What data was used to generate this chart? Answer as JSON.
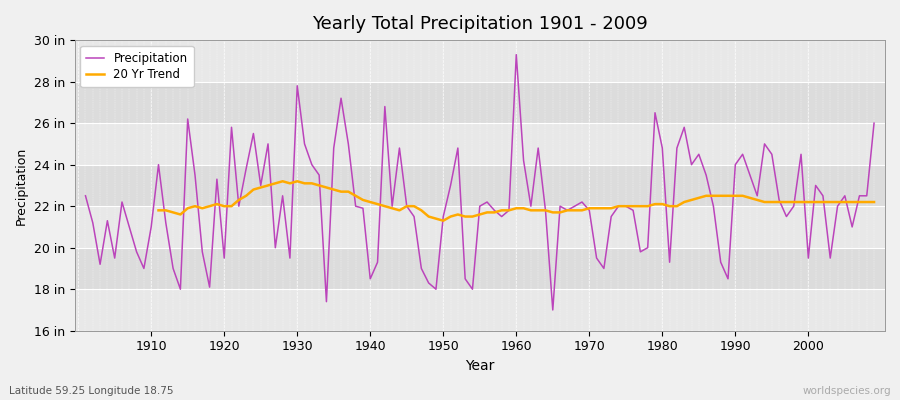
{
  "title": "Yearly Total Precipitation 1901 - 2009",
  "xlabel": "Year",
  "ylabel": "Precipitation",
  "subtitle": "Latitude 59.25 Longitude 18.75",
  "watermark": "worldspecies.org",
  "bg_color": "#f0f0f0",
  "plot_bg_color": "#ebebeb",
  "band_color_light": "#e8e8e8",
  "band_color_dark": "#dcdcdc",
  "precip_color": "#bb44bb",
  "trend_color": "#ffaa00",
  "precip_label": "Precipitation",
  "trend_label": "20 Yr Trend",
  "ylim": [
    16,
    30
  ],
  "yticks": [
    16,
    18,
    20,
    22,
    24,
    26,
    28,
    30
  ],
  "years": [
    1901,
    1902,
    1903,
    1904,
    1905,
    1906,
    1907,
    1908,
    1909,
    1910,
    1911,
    1912,
    1913,
    1914,
    1915,
    1916,
    1917,
    1918,
    1919,
    1920,
    1921,
    1922,
    1923,
    1924,
    1925,
    1926,
    1927,
    1928,
    1929,
    1930,
    1931,
    1932,
    1933,
    1934,
    1935,
    1936,
    1937,
    1938,
    1939,
    1940,
    1941,
    1942,
    1943,
    1944,
    1945,
    1946,
    1947,
    1948,
    1949,
    1950,
    1951,
    1952,
    1953,
    1954,
    1955,
    1956,
    1957,
    1958,
    1959,
    1960,
    1961,
    1962,
    1963,
    1964,
    1965,
    1966,
    1967,
    1968,
    1969,
    1970,
    1971,
    1972,
    1973,
    1974,
    1975,
    1976,
    1977,
    1978,
    1979,
    1980,
    1981,
    1982,
    1983,
    1984,
    1985,
    1986,
    1987,
    1988,
    1989,
    1990,
    1991,
    1992,
    1993,
    1994,
    1995,
    1996,
    1997,
    1998,
    1999,
    2000,
    2001,
    2002,
    2003,
    2004,
    2005,
    2006,
    2007,
    2008,
    2009
  ],
  "precip": [
    22.5,
    21.2,
    19.2,
    21.3,
    19.5,
    22.2,
    21.0,
    19.8,
    19.0,
    21.0,
    24.0,
    21.2,
    19.0,
    18.0,
    26.2,
    23.5,
    19.8,
    18.1,
    23.3,
    19.5,
    25.8,
    22.0,
    23.8,
    25.5,
    23.0,
    25.0,
    20.0,
    22.5,
    19.5,
    27.8,
    25.0,
    24.0,
    23.5,
    17.4,
    24.8,
    27.2,
    25.0,
    22.0,
    21.9,
    18.5,
    19.3,
    26.8,
    22.0,
    24.8,
    22.0,
    21.5,
    19.0,
    18.3,
    18.0,
    21.5,
    23.0,
    24.8,
    18.5,
    18.0,
    22.0,
    22.2,
    21.8,
    21.5,
    21.8,
    29.3,
    24.2,
    22.0,
    24.8,
    21.8,
    17.0,
    22.0,
    21.8,
    22.0,
    22.2,
    21.8,
    19.5,
    19.0,
    21.5,
    22.0,
    22.0,
    21.8,
    19.8,
    20.0,
    26.5,
    24.8,
    19.3,
    24.8,
    25.8,
    24.0,
    24.5,
    23.5,
    22.0,
    19.3,
    18.5,
    24.0,
    24.5,
    23.5,
    22.5,
    25.0,
    24.5,
    22.3,
    21.5,
    22.0,
    24.5,
    19.5,
    23.0,
    22.5,
    19.5,
    22.0,
    22.5,
    21.0,
    22.5,
    22.5,
    26.0
  ],
  "trend": [
    null,
    null,
    null,
    null,
    null,
    null,
    null,
    null,
    null,
    null,
    21.8,
    21.8,
    21.7,
    21.6,
    21.9,
    22.0,
    21.9,
    22.0,
    22.1,
    22.0,
    22.0,
    22.3,
    22.5,
    22.8,
    22.9,
    23.0,
    23.1,
    23.2,
    23.1,
    23.2,
    23.1,
    23.1,
    23.0,
    22.9,
    22.8,
    22.7,
    22.7,
    22.5,
    22.3,
    22.2,
    22.1,
    22.0,
    21.9,
    21.8,
    22.0,
    22.0,
    21.8,
    21.5,
    21.4,
    21.3,
    21.5,
    21.6,
    21.5,
    21.5,
    21.6,
    21.7,
    21.7,
    21.8,
    21.8,
    21.9,
    21.9,
    21.8,
    21.8,
    21.8,
    21.7,
    21.7,
    21.8,
    21.8,
    21.8,
    21.9,
    21.9,
    21.9,
    21.9,
    22.0,
    22.0,
    22.0,
    22.0,
    22.0,
    22.1,
    22.1,
    22.0,
    22.0,
    22.2,
    22.3,
    22.4,
    22.5,
    22.5,
    22.5,
    22.5,
    22.5,
    22.5,
    22.4,
    22.3,
    22.2,
    22.2,
    22.2,
    22.2,
    22.2,
    22.2,
    22.2,
    22.2,
    22.2,
    22.2,
    22.2,
    22.2,
    22.2,
    22.2,
    22.2,
    22.2
  ]
}
